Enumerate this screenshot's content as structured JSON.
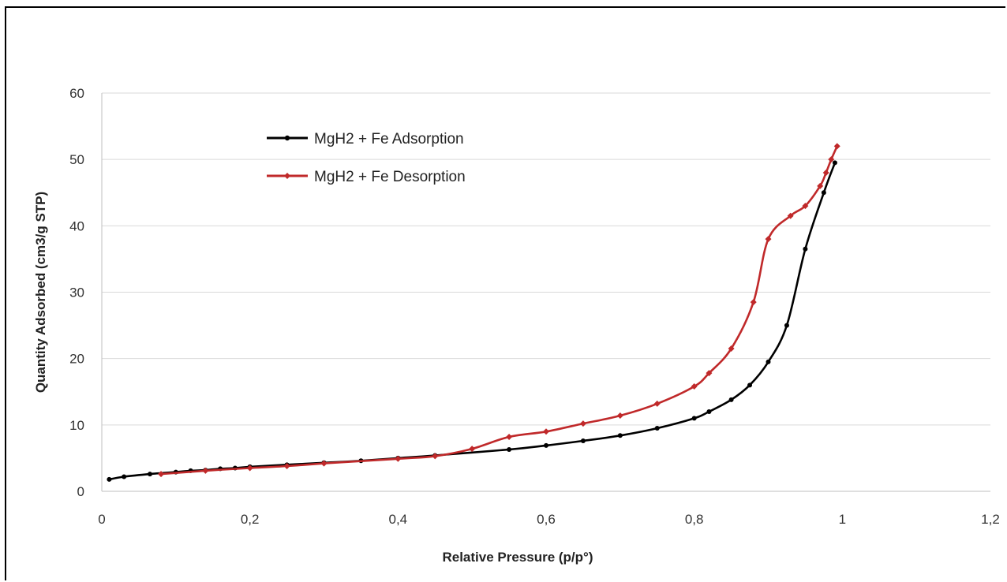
{
  "chart_data": {
    "type": "line",
    "title": "",
    "xlabel": "Relative Pressure (p/p°)",
    "ylabel": "Quantity Adsorbed (cm3/g STP)",
    "xlim": [
      0,
      1.2
    ],
    "ylim": [
      0,
      60
    ],
    "x_ticks": [
      "0",
      "0,2",
      "0,4",
      "0,6",
      "0,8",
      "1",
      "1,2"
    ],
    "y_ticks": [
      "0",
      "10",
      "20",
      "30",
      "40",
      "50",
      "60"
    ],
    "grid": "horizontal",
    "legend_position": "top-left",
    "series": [
      {
        "name": "MgH2 + Fe Adsorption",
        "color": "#000000",
        "marker": "circle",
        "x": [
          0.01,
          0.03,
          0.065,
          0.1,
          0.12,
          0.14,
          0.16,
          0.18,
          0.2,
          0.25,
          0.3,
          0.35,
          0.4,
          0.45,
          0.55,
          0.6,
          0.65,
          0.7,
          0.75,
          0.8,
          0.82,
          0.85,
          0.875,
          0.9,
          0.925,
          0.95,
          0.975,
          0.99
        ],
        "y": [
          1.8,
          2.2,
          2.6,
          2.9,
          3.1,
          3.2,
          3.4,
          3.5,
          3.7,
          4.0,
          4.3,
          4.6,
          5.0,
          5.4,
          6.3,
          6.9,
          7.6,
          8.4,
          9.5,
          11.0,
          12.0,
          13.8,
          16.0,
          19.5,
          25.0,
          36.5,
          45.0,
          49.5
        ]
      },
      {
        "name": "MgH2 + Fe Desorption",
        "color": "#c0292a",
        "marker": "diamond",
        "x": [
          0.993,
          0.985,
          0.978,
          0.97,
          0.95,
          0.93,
          0.9,
          0.88,
          0.85,
          0.82,
          0.8,
          0.75,
          0.7,
          0.65,
          0.6,
          0.55,
          0.5,
          0.45,
          0.4,
          0.3,
          0.25,
          0.2,
          0.14,
          0.08
        ],
        "y": [
          52.0,
          50.0,
          48.0,
          46.0,
          43.0,
          41.5,
          38.0,
          28.5,
          21.5,
          17.8,
          15.8,
          13.2,
          11.4,
          10.2,
          9.0,
          8.2,
          6.4,
          5.3,
          4.9,
          4.2,
          3.8,
          3.5,
          3.1,
          2.6
        ]
      }
    ]
  }
}
